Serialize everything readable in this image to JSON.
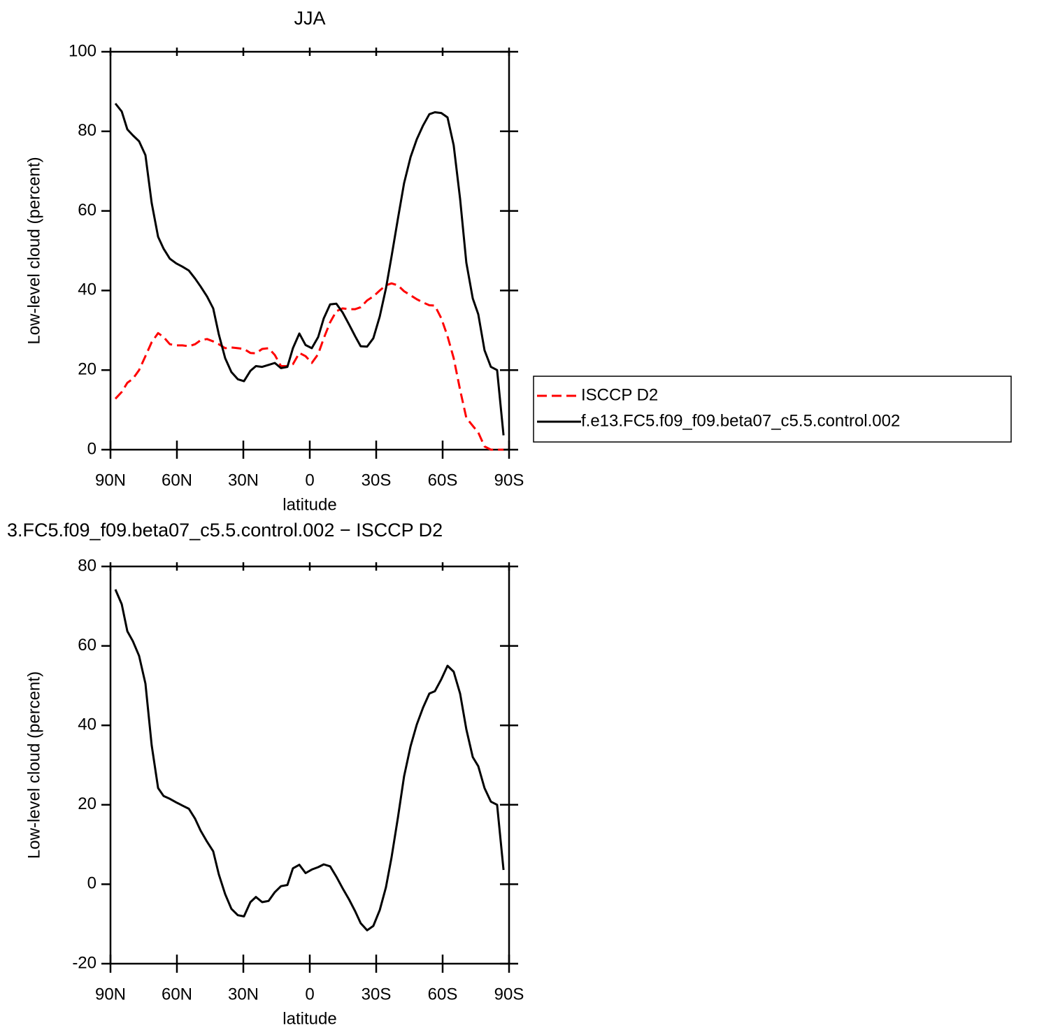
{
  "chart_data": [
    {
      "type": "line",
      "title": "JJA",
      "xlabel": "latitude",
      "ylabel": "Low-level cloud (percent)",
      "x": [
        87.8,
        84.9,
        82.4,
        79.9,
        77.1,
        74.2,
        71.4,
        68.5,
        66,
        63.2,
        60.3,
        57.5,
        54.6,
        51.8,
        49.3,
        46.4,
        43.6,
        41.1,
        38.2,
        35.4,
        32.5,
        29.7,
        26.8,
        24.3,
        21.5,
        18.6,
        15.8,
        13,
        10.1,
        7.6,
        4.7,
        1.9,
        -0.9,
        -3.8,
        -6.3,
        -9.2,
        -12,
        -14.8,
        -17.7,
        -20.5,
        -23,
        -25.9,
        -28.7,
        -31.6,
        -34.4,
        -36.9,
        -39.8,
        -42.6,
        -45.5,
        -48.3,
        -51.2,
        -54,
        -56.5,
        -59.4,
        -62.2,
        -65,
        -67.9,
        -70.7,
        -73.6,
        -76.1,
        -78.9,
        -81.8,
        -84.6,
        -87.5
      ],
      "xlim": [
        90,
        -90
      ],
      "xticks": [
        {
          "value": 90,
          "label": "90N"
        },
        {
          "value": 60,
          "label": "60N"
        },
        {
          "value": 30,
          "label": "30N"
        },
        0,
        {
          "value": -30,
          "label": "30S"
        },
        {
          "value": -60,
          "label": "60S"
        },
        {
          "value": -90,
          "label": "90S"
        }
      ],
      "ylim": [
        0,
        100
      ],
      "yticks": [
        0,
        20,
        40,
        60,
        80,
        100
      ],
      "legend": "right",
      "series": [
        {
          "name": "ISCCP D2",
          "color": "#ff0000",
          "dash": "dashed",
          "values": [
            12.8,
            14.5,
            16.8,
            17.8,
            20,
            23.5,
            27,
            29.3,
            28.3,
            26.5,
            26.2,
            26.2,
            26,
            26.5,
            27.5,
            27.8,
            27.2,
            26.5,
            25.5,
            25.7,
            25.5,
            25.3,
            24.3,
            24.2,
            25.3,
            25.5,
            23.8,
            21,
            21,
            21.5,
            24.3,
            23.5,
            21.8,
            24,
            28,
            32,
            34.8,
            35.5,
            35.3,
            35.3,
            35.8,
            37.5,
            38.5,
            40,
            41.3,
            41.8,
            41.3,
            39.8,
            38.8,
            37.8,
            37,
            36.3,
            36.2,
            33,
            28.5,
            23,
            15,
            8,
            6,
            4.3,
            0.8,
            0,
            0,
            0
          ]
        },
        {
          "name": "f.e13.FC5.f09_f09.beta07_c5.5.control.002",
          "color": "#000000",
          "dash": "solid",
          "values": [
            87,
            85,
            80.5,
            79,
            77.5,
            74,
            62,
            53.5,
            50.5,
            48,
            46.8,
            46,
            45,
            43,
            41,
            38.5,
            35.5,
            29,
            23,
            19.5,
            17.7,
            17.2,
            19.8,
            21,
            20.8,
            21.3,
            21.8,
            20.5,
            20.8,
            25.5,
            29.2,
            26.3,
            25.5,
            28.3,
            33,
            36.5,
            36.7,
            34.5,
            31.5,
            28.5,
            26,
            25.9,
            28,
            33.5,
            40.5,
            48.5,
            58,
            67,
            73.5,
            78,
            81.5,
            84.3,
            84.8,
            84.6,
            83.5,
            76.5,
            63,
            47,
            38,
            34,
            25,
            20.8,
            20,
            3.6
          ]
        }
      ]
    },
    {
      "type": "line",
      "title": "3.FC5.f09_f09.beta07_c5.5.control.002 − ISCCP D2",
      "xlabel": "latitude",
      "ylabel": "Low-level cloud (percent)",
      "x": [
        87.8,
        84.9,
        82.4,
        79.9,
        77.1,
        74.2,
        71.4,
        68.5,
        66,
        63.2,
        60.3,
        57.5,
        54.6,
        51.8,
        49.3,
        46.4,
        43.6,
        41.1,
        38.2,
        35.4,
        32.5,
        29.7,
        26.8,
        24.3,
        21.5,
        18.6,
        15.8,
        13,
        10.1,
        7.6,
        4.7,
        1.9,
        -0.9,
        -3.8,
        -6.3,
        -9.2,
        -12,
        -14.8,
        -17.7,
        -20.5,
        -23,
        -25.9,
        -28.7,
        -31.6,
        -34.4,
        -36.9,
        -39.8,
        -42.6,
        -45.5,
        -48.3,
        -51.2,
        -54,
        -56.5,
        -59.4,
        -62.2,
        -65,
        -67.9,
        -70.7,
        -73.6,
        -76.1,
        -78.9,
        -81.8,
        -84.6,
        -87.5
      ],
      "xlim": [
        90,
        -90
      ],
      "xticks": [
        {
          "value": 90,
          "label": "90N"
        },
        {
          "value": 60,
          "label": "60N"
        },
        {
          "value": 30,
          "label": "30N"
        },
        0,
        {
          "value": -30,
          "label": "30S"
        },
        {
          "value": -60,
          "label": "60S"
        },
        {
          "value": -90,
          "label": "90S"
        }
      ],
      "ylim": [
        -20,
        80
      ],
      "yticks": [
        -20,
        0,
        20,
        40,
        60,
        80
      ],
      "series": [
        {
          "color": "#000000",
          "dash": "solid",
          "values": [
            74.2,
            70.5,
            63.7,
            61.2,
            57.5,
            50.5,
            35,
            24.2,
            22.2,
            21.5,
            20.6,
            19.8,
            19,
            16.5,
            13.5,
            10.7,
            8.3,
            2.5,
            -2.5,
            -6.2,
            -7.8,
            -8.1,
            -4.5,
            -3.2,
            -4.5,
            -4.2,
            -2,
            -0.5,
            -0.2,
            4,
            4.9,
            2.8,
            3.7,
            4.3,
            5,
            4.5,
            1.9,
            -1,
            -3.8,
            -6.8,
            -9.8,
            -11.6,
            -10.5,
            -6.5,
            -0.8,
            6.7,
            16.7,
            27.2,
            34.7,
            40.2,
            44.5,
            48,
            48.6,
            51.6,
            55,
            53.5,
            48,
            39,
            32,
            29.7,
            24.2,
            20.8,
            20,
            3.6
          ]
        }
      ]
    }
  ]
}
